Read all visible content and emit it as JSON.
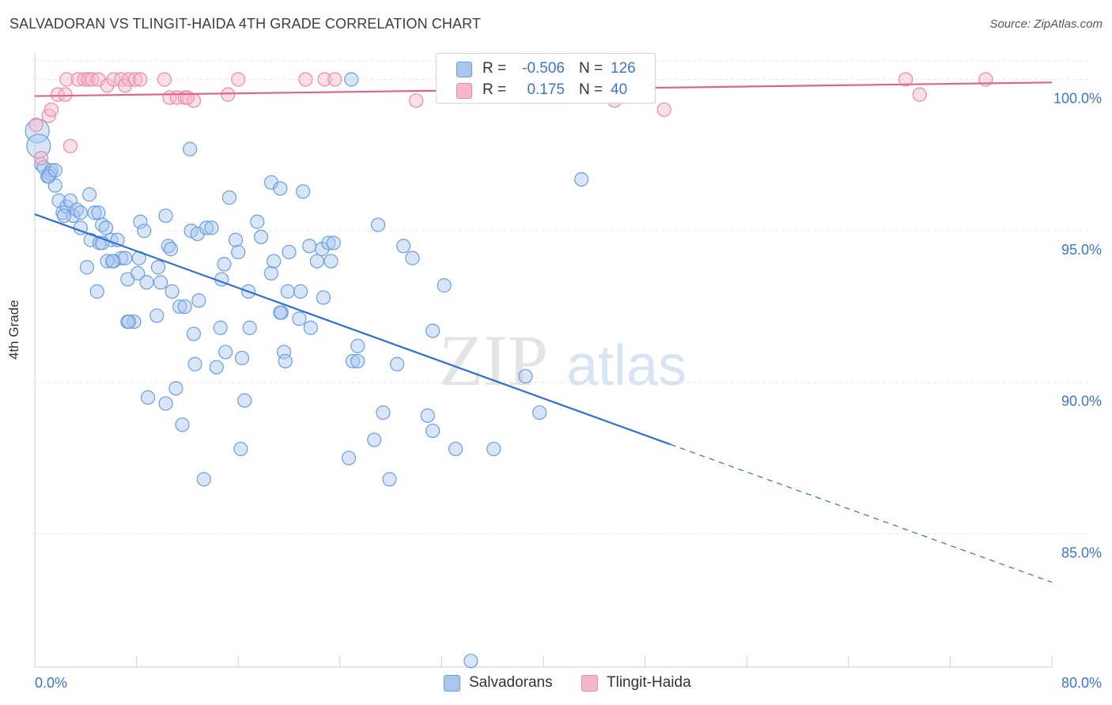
{
  "header": {
    "title": "SALVADORAN VS TLINGIT-HAIDA 4TH GRADE CORRELATION CHART",
    "source": "Source: ZipAtlas.com"
  },
  "legend": {
    "rows": [
      {
        "r_label": "R =",
        "r_value": "-0.506",
        "n_label": "N =",
        "n_value": "126",
        "color": "#a9c6ee"
      },
      {
        "r_label": "R =",
        "r_value": "0.175",
        "n_label": "N =",
        "n_value": "40",
        "color": "#f6b7cb"
      }
    ]
  },
  "bottom_legend": [
    {
      "label": "Salvadorans",
      "color": "#a9c6ee"
    },
    {
      "label": "Tlingit-Haida",
      "color": "#f6b7cb"
    }
  ],
  "watermark": {
    "zip": "ZIP",
    "atlas": "atlas"
  },
  "chart_data": {
    "type": "scatter",
    "title": "SALVADORAN VS TLINGIT-HAIDA 4TH GRADE CORRELATION CHART",
    "xlabel": "",
    "ylabel": "4th Grade",
    "xlim": [
      0,
      80
    ],
    "ylim": [
      80.6,
      100.9
    ],
    "x_tick_labels": [
      "0.0%",
      "80.0%"
    ],
    "y_ticks": [
      85,
      90,
      95,
      100
    ],
    "y_tick_labels": [
      "85.0%",
      "90.0%",
      "95.0%",
      "100.0%"
    ],
    "grid": true,
    "legend_position": "top-center",
    "series": [
      {
        "name": "Salvadorans",
        "color": "#6a9ee0",
        "fill": "#a9c6ee",
        "r": -0.506,
        "n": 126,
        "trend": {
          "x0": 0,
          "y0": 95.55,
          "x1": 50,
          "y1": 87.95,
          "dash_to_x": 80,
          "dash_to_y": 83.4
        },
        "points": [
          [
            0.2,
            98.3
          ],
          [
            0.3,
            97.8
          ],
          [
            0.5,
            97.2
          ],
          [
            0.7,
            97.1
          ],
          [
            1.0,
            96.8
          ],
          [
            1.3,
            97.0
          ],
          [
            1.2,
            96.9
          ],
          [
            1.6,
            96.5
          ],
          [
            1.9,
            96.0
          ],
          [
            2.2,
            95.6
          ],
          [
            2.5,
            95.8
          ],
          [
            2.8,
            96.0
          ],
          [
            3.0,
            95.5
          ],
          [
            3.3,
            95.7
          ],
          [
            3.6,
            95.6
          ],
          [
            4.3,
            96.2
          ],
          [
            4.7,
            95.6
          ],
          [
            5.0,
            95.6
          ],
          [
            3.6,
            95.1
          ],
          [
            4.4,
            94.7
          ],
          [
            5.1,
            94.6
          ],
          [
            5.3,
            95.2
          ],
          [
            5.6,
            95.1
          ],
          [
            6.0,
            94.7
          ],
          [
            6.5,
            94.7
          ],
          [
            6.8,
            94.1
          ],
          [
            6.2,
            94.0
          ],
          [
            7.1,
            94.1
          ],
          [
            4.1,
            93.8
          ],
          [
            5.7,
            94.0
          ],
          [
            6.1,
            94.0
          ],
          [
            8.3,
            95.3
          ],
          [
            8.6,
            95.0
          ],
          [
            10.3,
            95.5
          ],
          [
            10.5,
            94.5
          ],
          [
            10.7,
            94.4
          ],
          [
            12.3,
            95.0
          ],
          [
            12.8,
            94.9
          ],
          [
            13.5,
            95.1
          ],
          [
            13.9,
            95.1
          ],
          [
            15.3,
            96.1
          ],
          [
            15.8,
            94.7
          ],
          [
            16.0,
            94.3
          ],
          [
            17.5,
            95.3
          ],
          [
            17.8,
            94.8
          ],
          [
            18.6,
            93.6
          ],
          [
            18.8,
            94.0
          ],
          [
            18.6,
            96.6
          ],
          [
            19.3,
            96.4
          ],
          [
            20.0,
            94.3
          ],
          [
            21.1,
            96.3
          ],
          [
            21.6,
            94.5
          ],
          [
            22.2,
            94.0
          ],
          [
            22.6,
            94.4
          ],
          [
            23.1,
            94.6
          ],
          [
            23.3,
            94.0
          ],
          [
            23.5,
            94.6
          ],
          [
            5.3,
            94.6
          ],
          [
            7.3,
            93.4
          ],
          [
            8.1,
            93.6
          ],
          [
            8.2,
            94.1
          ],
          [
            8.8,
            93.3
          ],
          [
            9.7,
            93.8
          ],
          [
            9.9,
            93.3
          ],
          [
            10.8,
            93.0
          ],
          [
            11.4,
            92.5
          ],
          [
            11.8,
            92.5
          ],
          [
            12.9,
            92.7
          ],
          [
            14.7,
            93.4
          ],
          [
            14.9,
            93.9
          ],
          [
            16.8,
            93.0
          ],
          [
            19.9,
            93.0
          ],
          [
            20.9,
            93.0
          ],
          [
            22.7,
            92.8
          ],
          [
            19.4,
            92.3
          ],
          [
            19.3,
            92.3
          ],
          [
            20.8,
            92.1
          ],
          [
            21.7,
            91.8
          ],
          [
            14.6,
            91.8
          ],
          [
            16.9,
            91.8
          ],
          [
            12.5,
            91.6
          ],
          [
            7.8,
            92.0
          ],
          [
            7.3,
            92.0
          ],
          [
            7.4,
            92.0
          ],
          [
            9.6,
            92.2
          ],
          [
            15.0,
            91.0
          ],
          [
            16.3,
            90.8
          ],
          [
            12.6,
            90.6
          ],
          [
            14.3,
            90.5
          ],
          [
            19.6,
            91.0
          ],
          [
            19.7,
            90.7
          ],
          [
            25.4,
            91.2
          ],
          [
            25.0,
            90.7
          ],
          [
            25.4,
            90.7
          ],
          [
            28.5,
            90.6
          ],
          [
            31.3,
            91.7
          ],
          [
            8.9,
            89.5
          ],
          [
            10.3,
            89.3
          ],
          [
            11.1,
            89.8
          ],
          [
            11.6,
            88.6
          ],
          [
            16.5,
            89.4
          ],
          [
            16.2,
            87.8
          ],
          [
            13.3,
            86.8
          ],
          [
            24.7,
            87.5
          ],
          [
            26.7,
            88.1
          ],
          [
            27.4,
            89.0
          ],
          [
            27.9,
            86.8
          ],
          [
            30.9,
            88.9
          ],
          [
            31.3,
            88.4
          ],
          [
            33.1,
            87.8
          ],
          [
            36.1,
            87.8
          ],
          [
            38.6,
            90.2
          ],
          [
            39.7,
            89.0
          ],
          [
            43.0,
            96.7
          ],
          [
            27.0,
            95.2
          ],
          [
            29.7,
            94.1
          ],
          [
            32.2,
            93.2
          ],
          [
            29.0,
            94.5
          ],
          [
            4.9,
            93.0
          ],
          [
            2.3,
            95.5
          ],
          [
            1.1,
            96.8
          ],
          [
            12.2,
            97.7
          ],
          [
            1.6,
            97.0
          ],
          [
            24.9,
            100.0
          ],
          [
            34.3,
            80.8
          ]
        ]
      },
      {
        "name": "Tlingit-Haida",
        "color": "#e88aa8",
        "fill": "#f6b7cb",
        "r": 0.175,
        "n": 40,
        "trend": {
          "x0": 0,
          "y0": 99.45,
          "x1": 80,
          "y1": 99.9
        },
        "points": [
          [
            0.1,
            98.5
          ],
          [
            0.5,
            97.4
          ],
          [
            1.1,
            98.8
          ],
          [
            1.3,
            99.0
          ],
          [
            1.8,
            99.5
          ],
          [
            2.4,
            99.5
          ],
          [
            2.8,
            97.8
          ],
          [
            2.5,
            100.0
          ],
          [
            3.4,
            100.0
          ],
          [
            3.9,
            100.0
          ],
          [
            4.2,
            100.0
          ],
          [
            4.5,
            100.0
          ],
          [
            5.0,
            100.0
          ],
          [
            5.7,
            99.8
          ],
          [
            6.2,
            100.0
          ],
          [
            6.8,
            100.0
          ],
          [
            7.1,
            99.8
          ],
          [
            7.4,
            100.0
          ],
          [
            7.9,
            100.0
          ],
          [
            8.3,
            100.0
          ],
          [
            10.2,
            100.0
          ],
          [
            10.6,
            99.4
          ],
          [
            11.2,
            99.4
          ],
          [
            11.8,
            99.4
          ],
          [
            12.5,
            99.3
          ],
          [
            12.0,
            99.4
          ],
          [
            15.2,
            99.5
          ],
          [
            16.0,
            100.0
          ],
          [
            21.3,
            100.0
          ],
          [
            22.8,
            100.0
          ],
          [
            23.6,
            100.0
          ],
          [
            30.0,
            99.3
          ],
          [
            32.2,
            99.5
          ],
          [
            37.0,
            100.0
          ],
          [
            37.9,
            99.8
          ],
          [
            45.6,
            99.3
          ],
          [
            49.5,
            99.0
          ],
          [
            68.5,
            100.0
          ],
          [
            69.6,
            99.5
          ],
          [
            74.8,
            100.0
          ]
        ]
      }
    ]
  }
}
